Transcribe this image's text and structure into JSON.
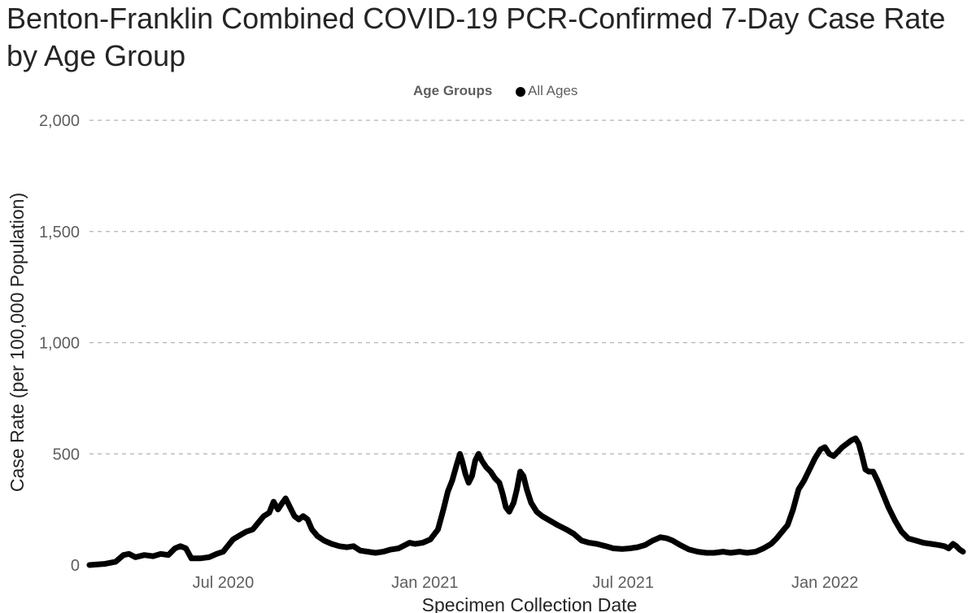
{
  "chart_data": {
    "type": "line",
    "title": "Benton-Franklin Combined COVID-19 PCR-Confirmed 7-Day Case Rate by Age Group",
    "xlabel": "Specimen Collection Date",
    "ylabel": "Case Rate (per 100,000 Population)",
    "ylim": [
      0,
      2000
    ],
    "yticks": [
      0,
      500,
      1000,
      1500,
      2000
    ],
    "ytick_labels": [
      "0",
      "500",
      "1,000",
      "1,500",
      "2,000"
    ],
    "xlim": [
      "2020-03-01",
      "2022-05-10"
    ],
    "xticks": [
      "2020-07-01",
      "2021-01-01",
      "2021-07-01",
      "2022-01-01"
    ],
    "xtick_labels": [
      "Jul 2020",
      "Jan 2021",
      "Jul 2021",
      "Jan 2022"
    ],
    "grid": "horizontal dashed",
    "legend": {
      "title": "Age Groups",
      "placement": "top-center"
    },
    "series": [
      {
        "name": "All Ages",
        "color": "#000000",
        "points": [
          [
            "2020-03-01",
            0
          ],
          [
            "2020-03-15",
            5
          ],
          [
            "2020-03-25",
            15
          ],
          [
            "2020-04-01",
            45
          ],
          [
            "2020-04-06",
            50
          ],
          [
            "2020-04-12",
            35
          ],
          [
            "2020-04-20",
            45
          ],
          [
            "2020-04-28",
            40
          ],
          [
            "2020-05-05",
            50
          ],
          [
            "2020-05-12",
            45
          ],
          [
            "2020-05-18",
            75
          ],
          [
            "2020-05-23",
            85
          ],
          [
            "2020-05-28",
            75
          ],
          [
            "2020-06-02",
            30
          ],
          [
            "2020-06-10",
            30
          ],
          [
            "2020-06-18",
            35
          ],
          [
            "2020-06-25",
            50
          ],
          [
            "2020-07-01",
            60
          ],
          [
            "2020-07-05",
            85
          ],
          [
            "2020-07-10",
            115
          ],
          [
            "2020-07-15",
            130
          ],
          [
            "2020-07-22",
            150
          ],
          [
            "2020-07-28",
            160
          ],
          [
            "2020-08-02",
            190
          ],
          [
            "2020-08-07",
            220
          ],
          [
            "2020-08-12",
            235
          ],
          [
            "2020-08-16",
            285
          ],
          [
            "2020-08-20",
            250
          ],
          [
            "2020-08-24",
            280
          ],
          [
            "2020-08-27",
            300
          ],
          [
            "2020-08-31",
            260
          ],
          [
            "2020-09-04",
            220
          ],
          [
            "2020-09-08",
            205
          ],
          [
            "2020-09-12",
            220
          ],
          [
            "2020-09-16",
            205
          ],
          [
            "2020-09-20",
            160
          ],
          [
            "2020-09-25",
            130
          ],
          [
            "2020-10-01",
            110
          ],
          [
            "2020-10-08",
            95
          ],
          [
            "2020-10-15",
            85
          ],
          [
            "2020-10-22",
            80
          ],
          [
            "2020-10-28",
            85
          ],
          [
            "2020-11-03",
            65
          ],
          [
            "2020-11-10",
            60
          ],
          [
            "2020-11-17",
            55
          ],
          [
            "2020-11-24",
            60
          ],
          [
            "2020-12-01",
            70
          ],
          [
            "2020-12-08",
            75
          ],
          [
            "2020-12-14",
            90
          ],
          [
            "2020-12-18",
            100
          ],
          [
            "2020-12-23",
            95
          ],
          [
            "2020-12-30",
            100
          ],
          [
            "2021-01-06",
            115
          ],
          [
            "2021-01-13",
            160
          ],
          [
            "2021-01-18",
            250
          ],
          [
            "2021-01-22",
            330
          ],
          [
            "2021-01-26",
            380
          ],
          [
            "2021-01-30",
            450
          ],
          [
            "2021-02-02",
            500
          ],
          [
            "2021-02-04",
            470
          ],
          [
            "2021-02-07",
            410
          ],
          [
            "2021-02-10",
            370
          ],
          [
            "2021-02-13",
            400
          ],
          [
            "2021-02-16",
            470
          ],
          [
            "2021-02-19",
            500
          ],
          [
            "2021-02-22",
            470
          ],
          [
            "2021-02-26",
            440
          ],
          [
            "2021-03-02",
            420
          ],
          [
            "2021-03-06",
            390
          ],
          [
            "2021-03-10",
            370
          ],
          [
            "2021-03-13",
            320
          ],
          [
            "2021-03-16",
            260
          ],
          [
            "2021-03-19",
            240
          ],
          [
            "2021-03-23",
            280
          ],
          [
            "2021-03-26",
            340
          ],
          [
            "2021-03-29",
            420
          ],
          [
            "2021-04-01",
            400
          ],
          [
            "2021-04-04",
            340
          ],
          [
            "2021-04-08",
            280
          ],
          [
            "2021-04-13",
            240
          ],
          [
            "2021-04-18",
            220
          ],
          [
            "2021-04-25",
            200
          ],
          [
            "2021-05-02",
            180
          ],
          [
            "2021-05-10",
            160
          ],
          [
            "2021-05-17",
            140
          ],
          [
            "2021-05-24",
            110
          ],
          [
            "2021-05-31",
            100
          ],
          [
            "2021-06-07",
            95
          ],
          [
            "2021-06-15",
            85
          ],
          [
            "2021-06-22",
            75
          ],
          [
            "2021-06-30",
            72
          ],
          [
            "2021-07-07",
            75
          ],
          [
            "2021-07-14",
            80
          ],
          [
            "2021-07-21",
            90
          ],
          [
            "2021-07-28",
            110
          ],
          [
            "2021-08-04",
            125
          ],
          [
            "2021-08-10",
            120
          ],
          [
            "2021-08-15",
            110
          ],
          [
            "2021-08-22",
            90
          ],
          [
            "2021-08-30",
            70
          ],
          [
            "2021-09-07",
            60
          ],
          [
            "2021-09-15",
            55
          ],
          [
            "2021-09-22",
            55
          ],
          [
            "2021-09-30",
            60
          ],
          [
            "2021-10-07",
            55
          ],
          [
            "2021-10-15",
            60
          ],
          [
            "2021-10-22",
            55
          ],
          [
            "2021-10-30",
            60
          ],
          [
            "2021-11-06",
            75
          ],
          [
            "2021-11-13",
            95
          ],
          [
            "2021-11-18",
            120
          ],
          [
            "2021-11-23",
            150
          ],
          [
            "2021-11-28",
            180
          ],
          [
            "2021-12-03",
            250
          ],
          [
            "2021-12-08",
            340
          ],
          [
            "2021-12-13",
            380
          ],
          [
            "2021-12-18",
            430
          ],
          [
            "2021-12-23",
            480
          ],
          [
            "2021-12-28",
            520
          ],
          [
            "2022-01-01",
            530
          ],
          [
            "2022-01-05",
            500
          ],
          [
            "2022-01-09",
            490
          ],
          [
            "2022-01-13",
            510
          ],
          [
            "2022-01-17",
            530
          ],
          [
            "2022-01-21",
            545
          ],
          [
            "2022-01-25",
            560
          ],
          [
            "2022-01-29",
            570
          ],
          [
            "2022-02-01",
            545
          ],
          [
            "2022-02-04",
            490
          ],
          [
            "2022-02-07",
            430
          ],
          [
            "2022-02-10",
            420
          ],
          [
            "2022-02-14",
            420
          ],
          [
            "2022-02-18",
            380
          ],
          [
            "2022-02-23",
            320
          ],
          [
            "2022-02-28",
            260
          ],
          [
            "2022-03-06",
            200
          ],
          [
            "2022-03-12",
            150
          ],
          [
            "2022-03-18",
            120
          ],
          [
            "2022-03-25",
            110
          ],
          [
            "2022-04-01",
            100
          ],
          [
            "2022-04-08",
            95
          ],
          [
            "2022-04-15",
            90
          ],
          [
            "2022-04-20",
            85
          ],
          [
            "2022-04-24",
            75
          ],
          [
            "2022-04-28",
            95
          ],
          [
            "2022-05-01",
            85
          ],
          [
            "2022-05-04",
            70
          ],
          [
            "2022-05-07",
            60
          ]
        ]
      }
    ]
  }
}
